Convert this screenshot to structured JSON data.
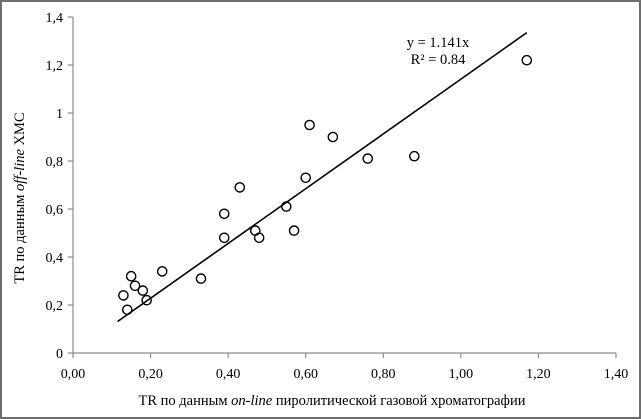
{
  "figure": {
    "background": "#ffffff",
    "border_color": "#6e6e6e"
  },
  "chart_data": {
    "type": "scatter",
    "title": "",
    "xlabel": "TR по данным on-line пиролитической газовой хроматографии",
    "ylabel": "TR по данным off-line ХМС",
    "xlabel_parts": {
      "prefix": "TR по данным ",
      "italic": "on-line",
      "suffix": " пиролитической газовой хроматографии"
    },
    "ylabel_parts": {
      "prefix": "TR по данным ",
      "italic": "off-line",
      "suffix": " ХМС"
    },
    "xlim": [
      0,
      1.4
    ],
    "ylim": [
      0,
      1.4
    ],
    "x_tick_values": [
      0,
      0.2,
      0.4,
      0.6,
      0.8,
      1.0,
      1.2,
      1.4
    ],
    "x_tick_labels": [
      "0,00",
      "0,20",
      "0,40",
      "0,60",
      "0,80",
      "1,00",
      "1,20",
      "1,40"
    ],
    "y_tick_values": [
      0,
      0.2,
      0.4,
      0.6,
      0.8,
      1.0,
      1.2,
      1.4
    ],
    "y_tick_labels": [
      "0",
      "0,2",
      "0,4",
      "0,6",
      "0,8",
      "1",
      "1,2",
      "1,4"
    ],
    "grid": "off",
    "legend": "none",
    "points": [
      [
        0.13,
        0.24
      ],
      [
        0.14,
        0.18
      ],
      [
        0.15,
        0.32
      ],
      [
        0.16,
        0.28
      ],
      [
        0.18,
        0.26
      ],
      [
        0.19,
        0.22
      ],
      [
        0.23,
        0.34
      ],
      [
        0.33,
        0.31
      ],
      [
        0.39,
        0.48
      ],
      [
        0.39,
        0.58
      ],
      [
        0.43,
        0.69
      ],
      [
        0.47,
        0.51
      ],
      [
        0.48,
        0.48
      ],
      [
        0.55,
        0.61
      ],
      [
        0.57,
        0.51
      ],
      [
        0.6,
        0.73
      ],
      [
        0.61,
        0.95
      ],
      [
        0.67,
        0.9
      ],
      [
        0.76,
        0.81
      ],
      [
        0.88,
        0.82
      ],
      [
        1.17,
        1.22
      ]
    ],
    "trendline": {
      "slope": 1.141,
      "intercept": 0,
      "x_start": 0.115,
      "x_end": 1.17
    },
    "annotation": {
      "equation": "y = 1.141x",
      "r_squared": "R² = 0.84"
    },
    "colors": {
      "marker": "#000000",
      "trend": "#000000",
      "axis": "#8c8c8c",
      "text": "#000000"
    },
    "marker": {
      "shape": "circle-open",
      "radius_px": 4.6,
      "stroke_width_px": 1.4
    }
  }
}
